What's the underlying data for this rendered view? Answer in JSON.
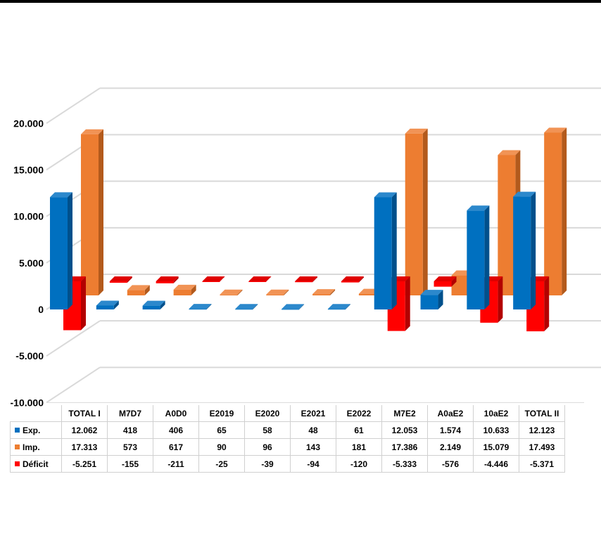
{
  "chart_data": {
    "type": "bar",
    "categories": [
      "TOTAL I",
      "M7D7",
      "A0D0",
      "E2019",
      "E2020",
      "E2021",
      "E2022",
      "M7E2",
      "A0aE2",
      "10aE2",
      "TOTAL II"
    ],
    "series": [
      {
        "name": "Exp.",
        "color": "#0070C0",
        "side": "#00508C",
        "top": "#2C88CC",
        "values": [
          12062,
          418,
          406,
          65,
          58,
          48,
          61,
          12053,
          1574,
          10633,
          12123
        ],
        "labels": [
          "12.062",
          "418",
          "406",
          "65",
          "58",
          "48",
          "61",
          "12.053",
          "1.574",
          "10.633",
          "12.123"
        ]
      },
      {
        "name": "Imp.",
        "color": "#ED7D31",
        "side": "#B35A1C",
        "top": "#F19355",
        "values": [
          17313,
          573,
          617,
          90,
          96,
          143,
          181,
          17386,
          2149,
          15079,
          17493
        ],
        "labels": [
          "17.313",
          "573",
          "617",
          "90",
          "96",
          "143",
          "181",
          "17.386",
          "2.149",
          "15.079",
          "17.493"
        ]
      },
      {
        "name": "Déficit",
        "color": "#FF0000",
        "side": "#B30000",
        "top": "#E00000",
        "values": [
          -5251,
          -155,
          -211,
          -25,
          -39,
          -94,
          -120,
          -5333,
          -576,
          -4446,
          -5371
        ],
        "labels": [
          "-5.251",
          "-155",
          "-211",
          "-25",
          "-39",
          "-94",
          "-120",
          "-5.333",
          "-576",
          "-4.446",
          "-5.371"
        ]
      }
    ],
    "yticks": [
      "20.000",
      "15.000",
      "10.000",
      "5.000",
      "0",
      "-5.000",
      "-10.000"
    ],
    "ytick_values": [
      20000,
      15000,
      10000,
      5000,
      0,
      -5000,
      -10000
    ],
    "ylim": [
      -10000,
      20000
    ],
    "grid": true,
    "legend": "data-table"
  }
}
